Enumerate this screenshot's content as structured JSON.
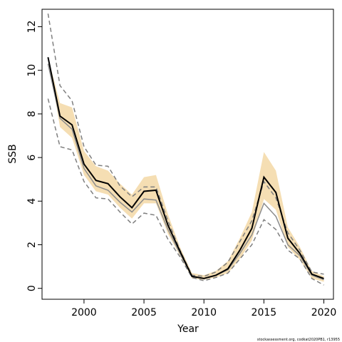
{
  "chart_data": {
    "type": "line",
    "title": "",
    "xlabel": "Year",
    "ylabel": "SSB",
    "xlim": [
      1996.5,
      2020.8
    ],
    "ylim": [
      -0.5,
      12.8
    ],
    "xticks": [
      2000,
      2005,
      2010,
      2015,
      2020
    ],
    "yticks": [
      0,
      2,
      4,
      6,
      8,
      10,
      12
    ],
    "grid": false,
    "legend": "none",
    "x": [
      1997,
      1998,
      1999,
      2000,
      2001,
      2002,
      2003,
      2004,
      2005,
      2006,
      2007,
      2008,
      2009,
      2010,
      2011,
      2012,
      2013,
      2014,
      2015,
      2016,
      2017,
      2018,
      2019,
      2020
    ],
    "series": [
      {
        "role": "estimate",
        "values": [
          10.6,
          7.9,
          7.5,
          5.7,
          4.95,
          4.8,
          4.2,
          3.7,
          4.45,
          4.5,
          2.9,
          1.7,
          0.55,
          0.45,
          0.6,
          0.9,
          1.75,
          2.75,
          5.1,
          4.4,
          2.3,
          1.6,
          0.65,
          0.45
        ]
      },
      {
        "role": "estimate-previous",
        "values": [
          10.3,
          7.8,
          7.3,
          5.5,
          4.7,
          4.5,
          3.95,
          3.5,
          4.1,
          4.05,
          2.7,
          1.6,
          0.55,
          0.45,
          0.6,
          0.85,
          1.6,
          2.45,
          3.9,
          3.3,
          2.0,
          1.5,
          0.6,
          0.4
        ]
      },
      {
        "role": "upper-dashed",
        "values": [
          12.6,
          9.3,
          8.6,
          6.5,
          5.65,
          5.6,
          4.7,
          4.2,
          4.65,
          4.65,
          3.1,
          1.75,
          0.6,
          0.55,
          0.75,
          1.2,
          2.15,
          3.1,
          4.9,
          4.15,
          2.55,
          1.75,
          0.75,
          0.65
        ]
      },
      {
        "role": "lower-dashed",
        "values": [
          8.7,
          6.5,
          6.35,
          4.9,
          4.15,
          4.1,
          3.5,
          2.95,
          3.45,
          3.35,
          2.25,
          1.45,
          0.5,
          0.35,
          0.5,
          0.7,
          1.35,
          2.0,
          3.15,
          2.7,
          1.75,
          1.35,
          0.45,
          0.15
        ]
      },
      {
        "role": "band-upper",
        "values": [
          10.6,
          8.5,
          8.3,
          6.3,
          5.6,
          5.4,
          4.8,
          4.3,
          5.1,
          5.2,
          3.4,
          1.9,
          0.7,
          0.6,
          0.8,
          1.25,
          2.3,
          3.5,
          6.25,
          5.4,
          2.8,
          1.9,
          0.8,
          0.55
        ]
      },
      {
        "role": "band-lower",
        "values": [
          10.6,
          7.4,
          6.9,
          5.2,
          4.45,
          4.3,
          3.7,
          3.2,
          3.9,
          3.9,
          2.5,
          1.5,
          0.45,
          0.4,
          0.5,
          0.7,
          1.35,
          2.2,
          4.1,
          3.6,
          1.9,
          1.3,
          0.45,
          0.3
        ]
      }
    ],
    "colors": {
      "band": "#f5deb3",
      "estimate": "#000000",
      "previous": "#8c8c8c",
      "dashed": "#7f7f7f"
    },
    "credit": "stockassessment.org, codkat2020PB1, r13955"
  }
}
